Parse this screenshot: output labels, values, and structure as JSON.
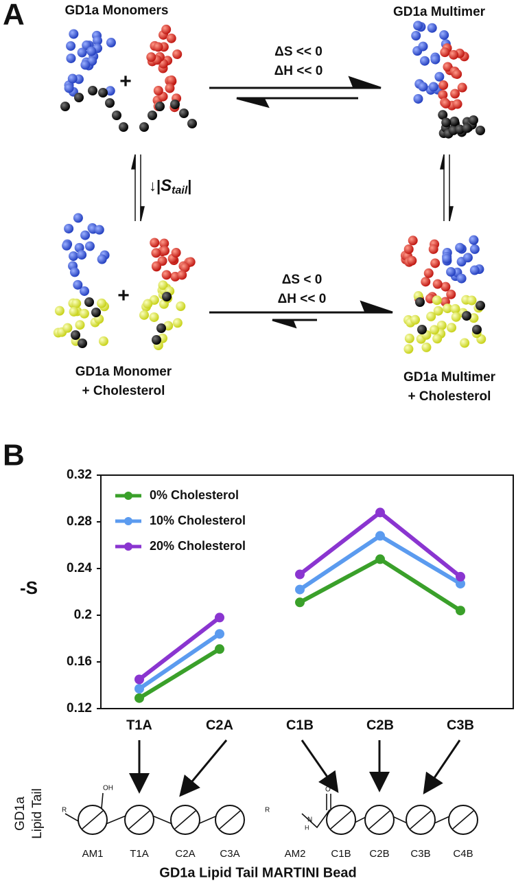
{
  "panel_a": {
    "label": "A",
    "top_left": "GD1a Monomers",
    "top_right": "GD1a Multimer",
    "top_reaction": {
      "entropy": "ΔS << 0",
      "enthalpy": "ΔH << 0"
    },
    "left_transition": {
      "prefix": "↓|",
      "symbol": "S",
      "subscript": "tail",
      "suffix": "|"
    },
    "bottom_left": [
      "GD1a Monomer",
      "+ Cholesterol"
    ],
    "bottom_right": [
      "GD1a  Multimer",
      "+ Cholesterol"
    ],
    "bottom_reaction": {
      "entropy": "ΔS < 0",
      "enthalpy": "ΔH << 0"
    },
    "plus": "+"
  },
  "chart_data": {
    "type": "line",
    "panel_label": "B",
    "y_label": "-S",
    "categories": [
      "T1A",
      "C2A",
      "C1B",
      "C2B",
      "C3B"
    ],
    "line_groups": [
      2,
      3
    ],
    "series": [
      {
        "name": "0% Cholesterol",
        "color": "#3aa02a",
        "values": [
          0.129,
          0.171,
          0.211,
          0.248,
          0.204
        ]
      },
      {
        "name": "10% Cholesterol",
        "color": "#5b9bef",
        "values": [
          0.137,
          0.184,
          0.222,
          0.268,
          0.227
        ]
      },
      {
        "name": "20% Cholesterol",
        "color": "#8a35d0",
        "values": [
          0.145,
          0.198,
          0.235,
          0.288,
          0.233
        ]
      }
    ],
    "ylim": [
      0.12,
      0.32
    ],
    "yticks": [
      0.12,
      0.16,
      0.2,
      0.24,
      0.28,
      0.32
    ],
    "legend": "upper-left"
  },
  "bead_diagram": {
    "y_label": [
      "GD1a",
      "Lipid  Tail"
    ],
    "beads": [
      "AM1",
      "T1A",
      "C2A",
      "C3A",
      "AM2",
      "C1B",
      "C2B",
      "C3B",
      "C4B"
    ],
    "atoms": {
      "r1": "R",
      "oh": "OH",
      "r2": "R",
      "n": "N",
      "h": "H",
      "o": "O"
    },
    "x_title": "GD1a Lipid Tail MARTINI Bead"
  }
}
